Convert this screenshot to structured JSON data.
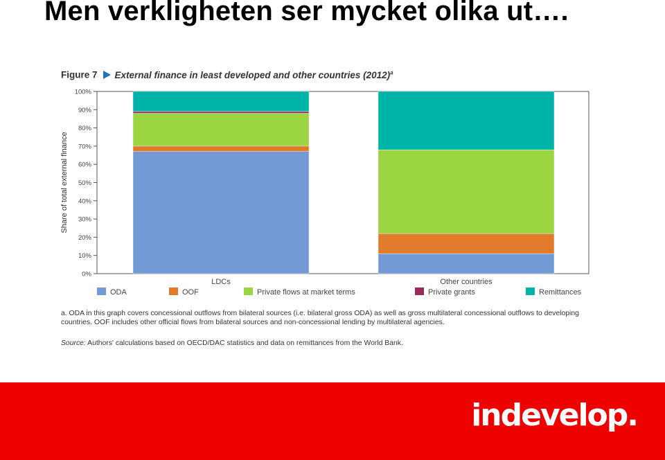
{
  "slide": {
    "title": "Men verkligheten ser mycket olika ut…."
  },
  "figure": {
    "label": "Figure 7",
    "title": "External finance in least developed and other countries (2012)",
    "title_superscript": "a",
    "note": "a. ODA in this graph covers concessional outflows from bilateral sources (i.e. bilateral gross ODA) as well as gross multilateral concessional outflows to developing countries. OOF includes other official flows from bilateral sources and non-concessional lending by multilateral agencies.",
    "source_label": "Source:",
    "source_text": "Authors' calculations based on OECD/DAC statistics and data on remittances from the World Bank."
  },
  "chart_data": {
    "type": "bar",
    "stacked": true,
    "title": "External finance in least developed and other countries (2012)",
    "xlabel": "",
    "ylabel": "Share of total external finance",
    "categories": [
      "LDCs",
      "Other countries"
    ],
    "ylim": [
      0,
      100
    ],
    "yticks": [
      "0%",
      "10%",
      "20%",
      "30%",
      "40%",
      "50%",
      "60%",
      "70%",
      "80%",
      "90%",
      "100%"
    ],
    "series": [
      {
        "name": "ODA",
        "color": "#7399d6",
        "values": [
          67,
          11
        ]
      },
      {
        "name": "OOF",
        "color": "#e07b2c",
        "values": [
          3,
          11
        ]
      },
      {
        "name": "Private flows at market terms",
        "color": "#9bd642",
        "values": [
          18,
          46
        ]
      },
      {
        "name": "Private grants",
        "color": "#9b2a5a",
        "values": [
          1,
          0
        ]
      },
      {
        "name": "Remittances",
        "color": "#00b3a8",
        "values": [
          11,
          32
        ]
      }
    ],
    "legend_position": "bottom",
    "grid": false
  },
  "footer": {
    "brand": "indevelop.",
    "band_color": "#ee0000"
  }
}
